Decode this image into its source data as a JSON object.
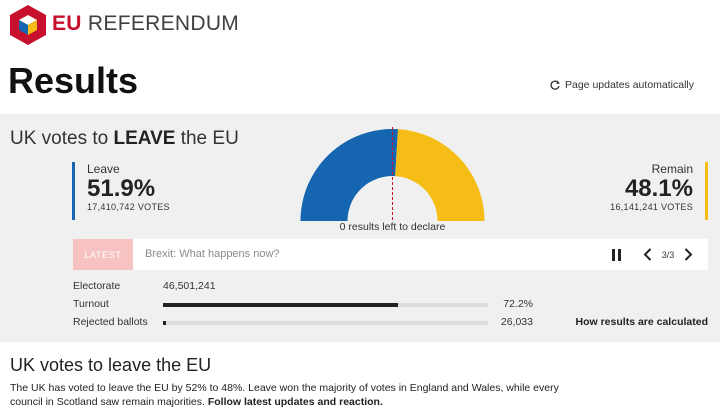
{
  "brand": {
    "strong": "EU",
    "rest": "REFERENDUM"
  },
  "page": {
    "title": "Results",
    "auto_update": "Page updates automatically"
  },
  "panel": {
    "headline": {
      "prefix": "UK votes to ",
      "emphasis": "LEAVE",
      "suffix": " the EU"
    },
    "leave": {
      "label": "Leave",
      "percent": "51.9%",
      "votes": "17,410,742 VOTES",
      "share": 51.9,
      "color": "#1565b0"
    },
    "remain": {
      "label": "Remain",
      "percent": "48.1%",
      "votes": "16,141,241 VOTES",
      "share": 48.1,
      "color": "#f6bd16"
    },
    "results_left": "0 results left to declare",
    "latest": {
      "badge": "LATEST",
      "text": "Brexit: What happens now?",
      "counter": "3/3"
    },
    "stats": {
      "electorate_label": "Electorate",
      "electorate_value": "46,501,241",
      "turnout_label": "Turnout",
      "turnout_value": "72.2%",
      "turnout_fraction": 0.722,
      "rejected_label": "Rejected ballots",
      "rejected_value": "26,033",
      "rejected_fraction": 0.01
    },
    "calc_link": "How results are calculated"
  },
  "story": {
    "title": "UK votes to leave the EU",
    "body": "The UK has voted to leave the EU by 52% to 48%. Leave won the majority of votes in England and Wales, while every council in Scotland saw remain majorities. ",
    "follow_link": "Follow latest updates and reaction."
  }
}
